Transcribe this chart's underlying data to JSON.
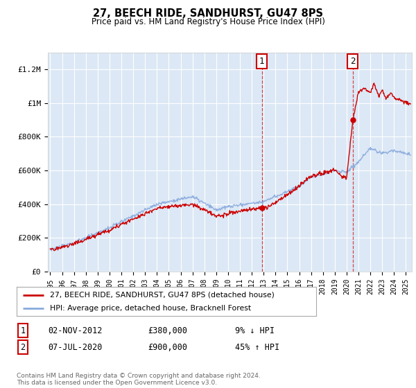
{
  "title": "27, BEECH RIDE, SANDHURST, GU47 8PS",
  "subtitle": "Price paid vs. HM Land Registry's House Price Index (HPI)",
  "ylabel_ticks": [
    "£0",
    "£200K",
    "£400K",
    "£600K",
    "£800K",
    "£1M",
    "£1.2M"
  ],
  "ytick_values": [
    0,
    200000,
    400000,
    600000,
    800000,
    1000000,
    1200000
  ],
  "ylim": [
    0,
    1300000
  ],
  "xlim_start": 1994.8,
  "xlim_end": 2025.5,
  "bg_color": "#ffffff",
  "plot_bg_color": "#dce8f5",
  "grid_color": "#ffffff",
  "hpi_color": "#88aadd",
  "price_color": "#cc0000",
  "sale1_x": 2012.84,
  "sale1_y": 380000,
  "sale2_x": 2020.52,
  "sale2_y": 900000,
  "legend_entry1": "27, BEECH RIDE, SANDHURST, GU47 8PS (detached house)",
  "legend_entry2": "HPI: Average price, detached house, Bracknell Forest",
  "annotation1_label": "1",
  "annotation1_date": "02-NOV-2012",
  "annotation1_price": "£380,000",
  "annotation1_hpi": "9% ↓ HPI",
  "annotation2_label": "2",
  "annotation2_date": "07-JUL-2020",
  "annotation2_price": "£900,000",
  "annotation2_hpi": "45% ↑ HPI",
  "footer": "Contains HM Land Registry data © Crown copyright and database right 2024.\nThis data is licensed under the Open Government Licence v3.0."
}
